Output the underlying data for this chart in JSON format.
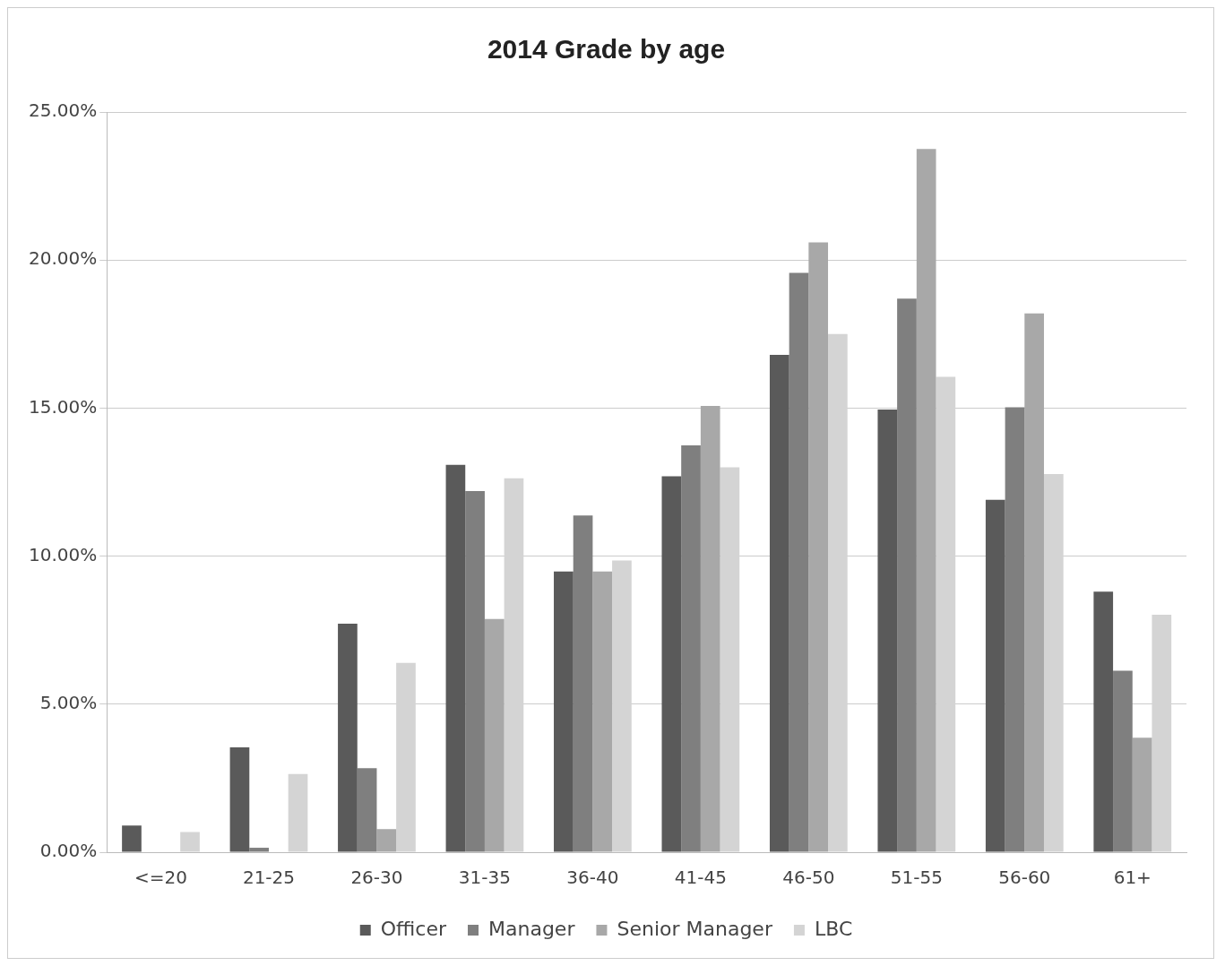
{
  "chart_data": {
    "type": "bar",
    "title": "2014 Grade by age",
    "categories": [
      "<=20",
      "21-25",
      "26-30",
      "31-35",
      "36-40",
      "41-45",
      "46-50",
      "51-55",
      "56-60",
      "61+"
    ],
    "series": [
      {
        "name": "Officer",
        "color": "#5a5a5a",
        "values": [
          0.9,
          3.54,
          7.72,
          13.08,
          9.48,
          12.7,
          16.8,
          14.95,
          11.9,
          8.8
        ]
      },
      {
        "name": "Manager",
        "color": "#7f7f7f",
        "values": [
          0,
          0.15,
          2.84,
          12.2,
          11.37,
          13.74,
          19.57,
          18.7,
          15.03,
          6.13
        ]
      },
      {
        "name": "Senior Manager",
        "color": "#a8a8a8",
        "values": [
          0,
          0,
          0.78,
          7.88,
          9.48,
          15.07,
          20.6,
          23.75,
          18.2,
          3.87
        ]
      },
      {
        "name": "LBC",
        "color": "#d4d4d4",
        "values": [
          0.68,
          2.64,
          6.39,
          12.63,
          9.85,
          13.0,
          17.5,
          16.06,
          12.77,
          8.02
        ]
      }
    ],
    "ylim": [
      0,
      25
    ],
    "yticks": [
      {
        "value": 0,
        "label": "0.00%"
      },
      {
        "value": 5,
        "label": "5.00%"
      },
      {
        "value": 10,
        "label": "10.00%"
      },
      {
        "value": 15,
        "label": "15.00%"
      },
      {
        "value": 20,
        "label": "20.00%"
      },
      {
        "value": 25,
        "label": "25.00%"
      }
    ],
    "grid": "y",
    "legend": "bottom"
  }
}
